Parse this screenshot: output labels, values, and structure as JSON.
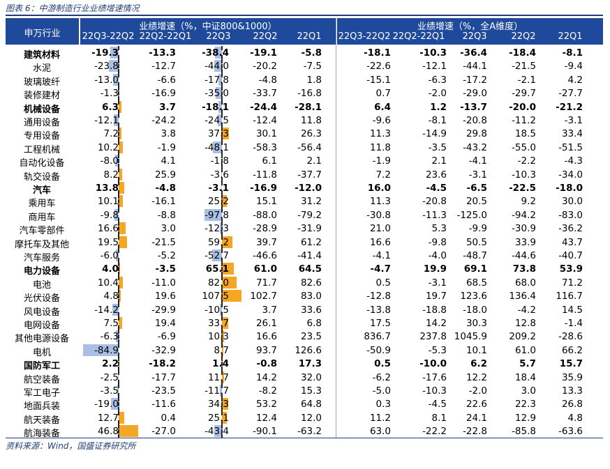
{
  "caption": "图表 6：中游制造行业业绩增速情况",
  "source": "资料来源：Wind，国盛证券研究所",
  "header": {
    "col_name": "申万行业",
    "group1": "业绩增速（%，中证800&1000）",
    "group2": "业绩增速（%，全A维度）",
    "periods": [
      "22Q3-22Q2",
      "22Q2-22Q1",
      "22Q3",
      "22Q2",
      "22Q1"
    ]
  },
  "colors": {
    "header_bg": "#1f4a9b",
    "positive_bar": "#f5a623",
    "negative_bar": "#a9bfe6"
  },
  "rows": [
    {
      "name": "建筑材料",
      "bold": true,
      "values": [
        "-19.3",
        "-13.3",
        "-38.4",
        "-19.1",
        "-5.8",
        "-18.1",
        "-10.3",
        "-36.4",
        "-18.4",
        "-8.1"
      ]
    },
    {
      "name": "水泥",
      "bold": false,
      "values": [
        "-23.8",
        "-12.7",
        "-44.0",
        "-20.2",
        "-7.5",
        "-22.6",
        "-12.1",
        "-44.1",
        "-21.5",
        "-9.4"
      ]
    },
    {
      "name": "玻璃玻纤",
      "bold": false,
      "values": [
        "-13.0",
        "-6.6",
        "-17.8",
        "-4.8",
        "1.8",
        "-15.1",
        "-6.3",
        "-17.2",
        "-2.1",
        "4.2"
      ]
    },
    {
      "name": "装修建材",
      "bold": false,
      "values": [
        "-1.3",
        "-16.9",
        "-35.0",
        "-33.7",
        "-16.8",
        "0.7",
        "-2.0",
        "-29.0",
        "-29.7",
        "-27.7"
      ]
    },
    {
      "name": "机械设备",
      "bold": true,
      "values": [
        "6.3",
        "3.7",
        "-18.1",
        "-24.4",
        "-28.1",
        "6.4",
        "1.2",
        "-13.7",
        "-20.0",
        "-21.2"
      ]
    },
    {
      "name": "通用设备",
      "bold": false,
      "values": [
        "-12.1",
        "-24.2",
        "-24.5",
        "-12.4",
        "11.8",
        "-9.6",
        "-8.1",
        "-20.8",
        "-11.2",
        "-3.1"
      ]
    },
    {
      "name": "专用设备",
      "bold": false,
      "values": [
        "7.2",
        "3.8",
        "37.3",
        "30.1",
        "26.3",
        "11.3",
        "-14.9",
        "29.8",
        "18.5",
        "33.4"
      ]
    },
    {
      "name": "工程机械",
      "bold": false,
      "values": [
        "10.2",
        "-1.9",
        "-48.1",
        "-58.3",
        "-56.4",
        "11.8",
        "-3.5",
        "-43.2",
        "-55.0",
        "-51.5"
      ]
    },
    {
      "name": "自动化设备",
      "bold": false,
      "values": [
        "-8.0",
        "4.1",
        "-1.8",
        "6.1",
        "2.1",
        "-1.9",
        "2.1",
        "-4.1",
        "-2.2",
        "-4.3"
      ]
    },
    {
      "name": "轨交设备",
      "bold": false,
      "values": [
        "8.2",
        "25.9",
        "-3.6",
        "-11.8",
        "-37.7",
        "7.2",
        "23.6",
        "-3.1",
        "-10.3",
        "-34.0"
      ]
    },
    {
      "name": "汽车",
      "bold": true,
      "values": [
        "13.8",
        "-4.8",
        "-3.1",
        "-16.9",
        "-12.0",
        "16.0",
        "-4.5",
        "-6.5",
        "-22.5",
        "-18.0"
      ]
    },
    {
      "name": "乘用车",
      "bold": false,
      "values": [
        "10.1",
        "-16.1",
        "25.2",
        "15.1",
        "31.2",
        "11.3",
        "-20.8",
        "20.5",
        "9.2",
        "30.0"
      ]
    },
    {
      "name": "商用车",
      "bold": false,
      "values": [
        "-9.8",
        "-8.8",
        "-97.8",
        "-88.0",
        "-79.2",
        "-30.8",
        "-11.3",
        "-125.0",
        "-94.2",
        "-83.0"
      ]
    },
    {
      "name": "汽车零部件",
      "bold": false,
      "values": [
        "16.6",
        "3.0",
        "-12.3",
        "-28.9",
        "-31.9",
        "21.0",
        "5.3",
        "-9.9",
        "-30.9",
        "-36.2"
      ]
    },
    {
      "name": "摩托车及其他",
      "bold": false,
      "values": [
        "19.5",
        "-21.5",
        "59.2",
        "39.7",
        "61.2",
        "16.6",
        "-9.8",
        "50.5",
        "33.9",
        "43.7"
      ]
    },
    {
      "name": "汽车服务",
      "bold": false,
      "values": [
        "-6.0",
        "-5.2",
        "-52.7",
        "-46.6",
        "-41.4",
        "-4.1",
        "-4.0",
        "-48.7",
        "-44.6",
        "-40.7"
      ]
    },
    {
      "name": "电力设备",
      "bold": true,
      "values": [
        "4.0",
        "-3.5",
        "65.1",
        "61.0",
        "64.5",
        "-4.7",
        "19.9",
        "69.1",
        "73.8",
        "53.9"
      ]
    },
    {
      "name": "电池",
      "bold": false,
      "values": [
        "10.4",
        "-11.0",
        "82.0",
        "71.7",
        "82.6",
        "0.5",
        "-3.1",
        "68.5",
        "68.0",
        "71.2"
      ]
    },
    {
      "name": "光伏设备",
      "bold": false,
      "values": [
        "4.8",
        "19.6",
        "107.5",
        "102.7",
        "83.0",
        "-12.8",
        "19.7",
        "123.6",
        "136.4",
        "116.7"
      ]
    },
    {
      "name": "风电设备",
      "bold": false,
      "values": [
        "-14.2",
        "-29.9",
        "-10.5",
        "3.7",
        "33.6",
        "-13.8",
        "-18.8",
        "-18.0",
        "-4.2",
        "14.5"
      ]
    },
    {
      "name": "电网设备",
      "bold": false,
      "values": [
        "7.5",
        "19.4",
        "33.7",
        "26.1",
        "6.8",
        "17.5",
        "14.2",
        "30.3",
        "12.8",
        "-1.4"
      ]
    },
    {
      "name": "其他电源设备",
      "bold": false,
      "values": [
        "-6.3",
        "-6.9",
        "10.3",
        "16.6",
        "23.5",
        "836.7",
        "237.8",
        "1045.9",
        "209.2",
        "-28.6"
      ]
    },
    {
      "name": "电机",
      "bold": false,
      "values": [
        "-84.9",
        "-32.9",
        "8.7",
        "93.7",
        "126.6",
        "-50.9",
        "-5.3",
        "10.1",
        "61.0",
        "66.2"
      ]
    },
    {
      "name": "国防军工",
      "bold": true,
      "values": [
        "2.2",
        "-18.2",
        "1.4",
        "-0.8",
        "17.3",
        "0.5",
        "-10.0",
        "6.2",
        "5.7",
        "15.7"
      ]
    },
    {
      "name": "航空装备",
      "bold": false,
      "values": [
        "-2.5",
        "-17.7",
        "11.7",
        "14.2",
        "32.0",
        "-6.2",
        "-17.6",
        "12.2",
        "18.4",
        "35.9"
      ]
    },
    {
      "name": "军工电子",
      "bold": false,
      "values": [
        "-3.5",
        "-23.5",
        "-11.7",
        "-8.2",
        "15.3",
        "-5.0",
        "-10.3",
        "-2.0",
        "3.0",
        "13.3"
      ]
    },
    {
      "name": "地面兵装",
      "bold": false,
      "values": [
        "-19.0",
        "-11.6",
        "34.3",
        "53.2",
        "64.8",
        "0.3",
        "-4.5",
        "22.6",
        "22.3",
        "26.8"
      ]
    },
    {
      "name": "航天装备",
      "bold": false,
      "values": [
        "12.7",
        "0.4",
        "25.1",
        "12.4",
        "12.0",
        "11.2",
        "8.1",
        "24.1",
        "12.9",
        "4.8"
      ]
    },
    {
      "name": "航海装备",
      "bold": false,
      "values": [
        "46.8",
        "-27.0",
        "-43.4",
        "-90.1",
        "-63.2",
        "63.0",
        "-22.2",
        "-22.8",
        "-85.8",
        "-63.6"
      ]
    }
  ]
}
